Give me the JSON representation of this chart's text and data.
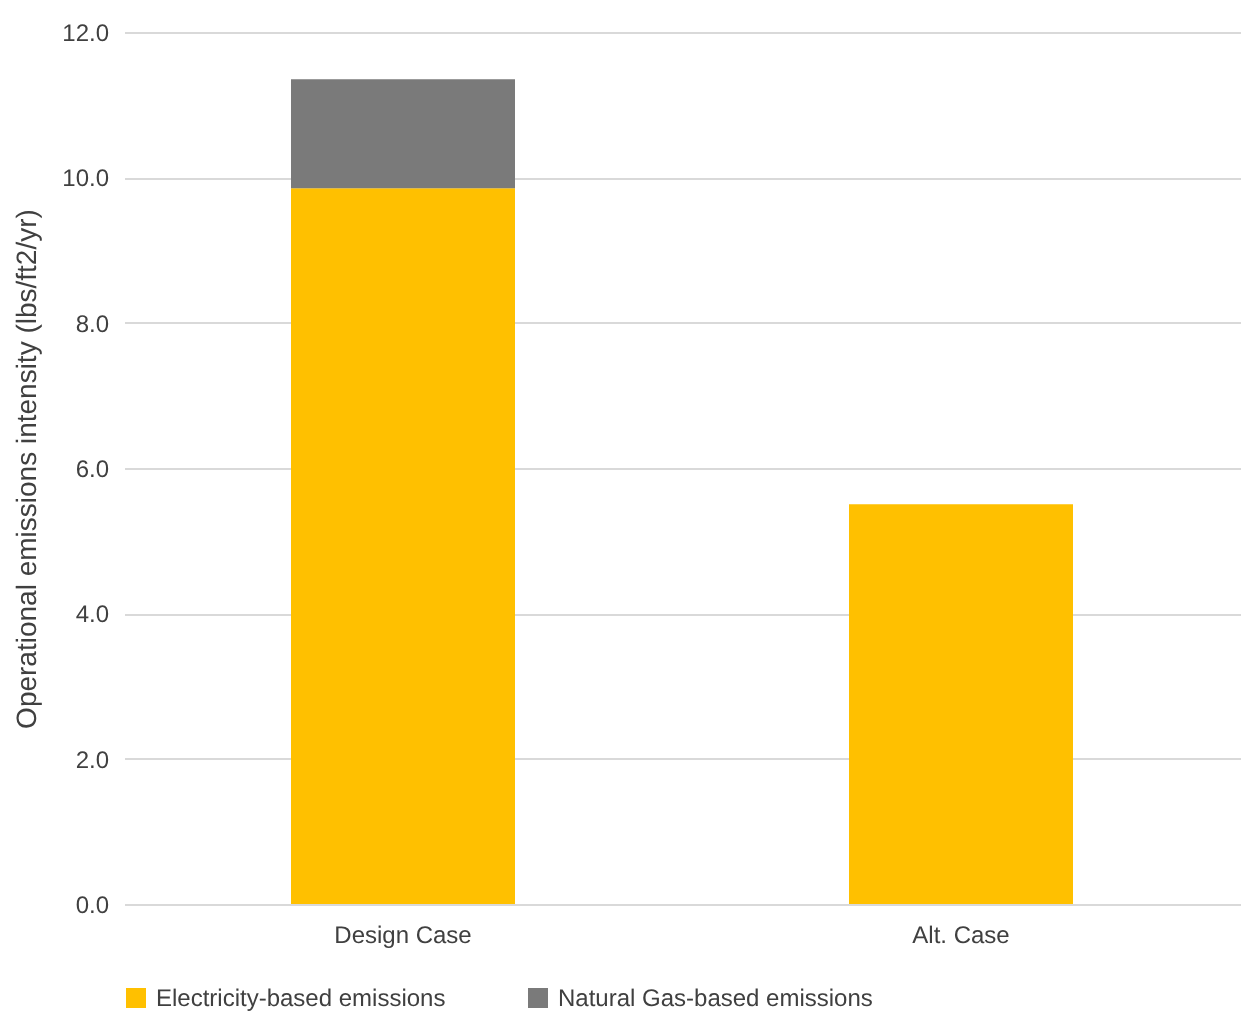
{
  "chart_data": {
    "type": "bar",
    "ylabel": "Operational emissions intensity (lbs/ft2/yr)",
    "categories": [
      "Design Case",
      "Alt. Case"
    ],
    "series": [
      {
        "name": "Electricity-based emissions",
        "color": "#ffc000",
        "values": [
          9.85,
          5.5
        ]
      },
      {
        "name": "Natural Gas-based emissions",
        "color": "#7a7a7a",
        "values": [
          1.5,
          null
        ]
      }
    ],
    "stacked": true,
    "ylim": [
      0,
      12
    ],
    "yticks": [
      {
        "value": 0,
        "label": "0.0"
      },
      {
        "value": 2,
        "label": "2.0"
      },
      {
        "value": 4,
        "label": "4.0"
      },
      {
        "value": 6,
        "label": "6.0"
      },
      {
        "value": 8,
        "label": "8.0"
      },
      {
        "value": 10,
        "label": "10.0"
      },
      {
        "value": 12,
        "label": "12.0"
      }
    ],
    "grid": "y",
    "legend": "bottom"
  }
}
